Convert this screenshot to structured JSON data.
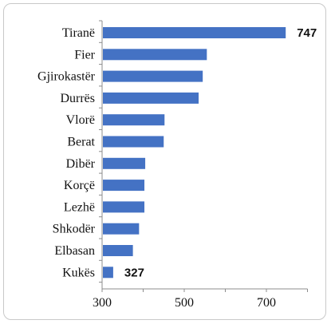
{
  "chart_data": {
    "type": "bar",
    "orientation": "horizontal",
    "categories": [
      "Tiranë",
      "Fier",
      "Gjirokastër",
      "Durrës",
      "Vlorë",
      "Berat",
      "Dibër",
      "Korçë",
      "Lezhë",
      "Shkodër",
      "Elbasan",
      "Kukës"
    ],
    "values": [
      747,
      555,
      545,
      535,
      452,
      450,
      405,
      403,
      403,
      390,
      375,
      327
    ],
    "data_labels": [
      {
        "category": "Tiranë",
        "text": "747"
      },
      {
        "category": "Kukës",
        "text": "327"
      }
    ],
    "x_ticks": [
      300,
      500,
      700
    ],
    "xlim": [
      300,
      800
    ],
    "bar_color": "#4472c4",
    "grid": false,
    "legend": "none"
  }
}
